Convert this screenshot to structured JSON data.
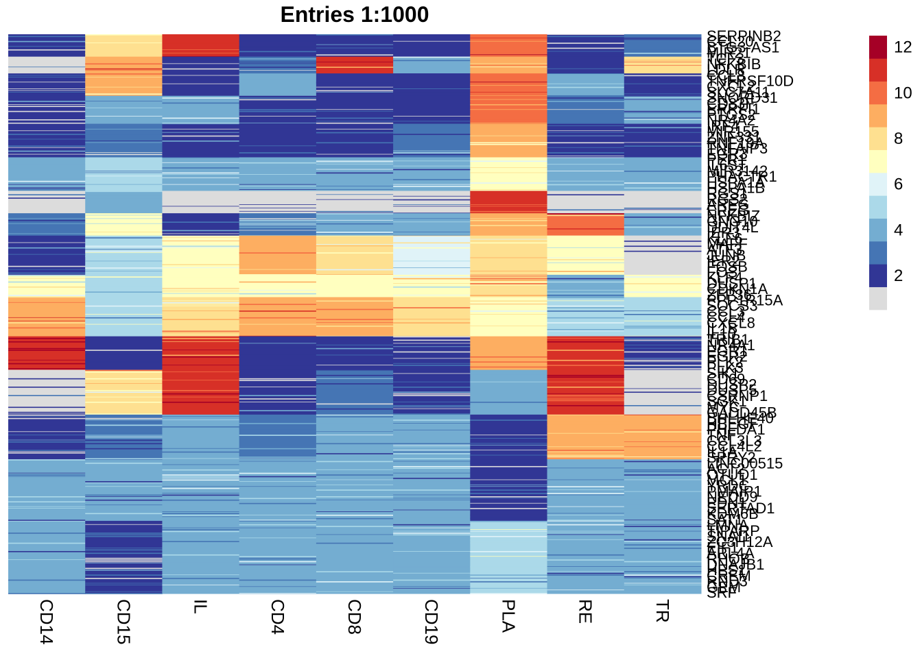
{
  "chart_data": {
    "type": "heatmap",
    "title": "Entries 1:1000",
    "columns": [
      "CD14",
      "CD15",
      "IL",
      "CD4",
      "CD8",
      "CD19",
      "PLA",
      "RE",
      "TR"
    ],
    "row_count": 1000,
    "color_scale": {
      "breaks": [
        1,
        2,
        3,
        4,
        5,
        6,
        7,
        8,
        9,
        10,
        11,
        12,
        13
      ],
      "colors": [
        "#dcdcdc",
        "#313695",
        "#4575b4",
        "#74add1",
        "#abd9e9",
        "#e0f3f8",
        "#ffffbf",
        "#fee090",
        "#fdae61",
        "#f46d43",
        "#d73027",
        "#a50026"
      ],
      "tick_labels": [
        "2",
        "4",
        "6",
        "8",
        "10",
        "12"
      ],
      "tick_values": [
        2,
        4,
        6,
        8,
        10,
        12
      ]
    },
    "blocks": [
      {
        "rows": [
          0,
          40
        ],
        "values": [
          2,
          8,
          11,
          2,
          2,
          2,
          10,
          2,
          3
        ]
      },
      {
        "rows": [
          40,
          70
        ],
        "values": [
          1,
          9,
          2,
          3,
          11,
          4,
          9,
          2,
          8
        ]
      },
      {
        "rows": [
          70,
          110
        ],
        "values": [
          2,
          9,
          2,
          4,
          2,
          2,
          10,
          4,
          2
        ]
      },
      {
        "rows": [
          110,
          160
        ],
        "values": [
          2,
          4,
          4,
          2,
          2,
          2,
          10,
          3,
          4
        ]
      },
      {
        "rows": [
          160,
          220
        ],
        "values": [
          2,
          3,
          2,
          2,
          2,
          3,
          9,
          2,
          2
        ]
      },
      {
        "rows": [
          220,
          280
        ],
        "values": [
          4,
          5,
          4,
          4,
          4,
          4,
          7,
          4,
          4
        ]
      },
      {
        "rows": [
          280,
          320
        ],
        "values": [
          1,
          4,
          1,
          1,
          1,
          1,
          11,
          1,
          1
        ]
      },
      {
        "rows": [
          320,
          360
        ],
        "values": [
          3,
          7,
          2,
          3,
          4,
          4,
          9,
          10,
          4
        ]
      },
      {
        "rows": [
          360,
          430
        ],
        "values": [
          2,
          5,
          7,
          9,
          8,
          6,
          8,
          7,
          1
        ]
      },
      {
        "rows": [
          430,
          470
        ],
        "values": [
          7,
          5,
          7,
          7,
          7,
          7,
          8,
          4,
          7
        ]
      },
      {
        "rows": [
          470,
          540
        ],
        "values": [
          9,
          5,
          8,
          9,
          9,
          8,
          7,
          5,
          5
        ]
      },
      {
        "rows": [
          540,
          600
        ],
        "values": [
          11,
          2,
          11,
          2,
          2,
          2,
          9,
          11,
          2
        ]
      },
      {
        "rows": [
          600,
          680
        ],
        "values": [
          1,
          8,
          11,
          2,
          3,
          2,
          4,
          11,
          1
        ]
      },
      {
        "rows": [
          680,
          760
        ],
        "values": [
          2,
          3,
          4,
          3,
          4,
          4,
          2,
          9,
          9
        ]
      },
      {
        "rows": [
          760,
          870
        ],
        "values": [
          4,
          4,
          4,
          4,
          4,
          4,
          2,
          4,
          4
        ]
      },
      {
        "rows": [
          870,
          1000
        ],
        "values": [
          4,
          2,
          4,
          4,
          4,
          4,
          5,
          4,
          4
        ]
      }
    ],
    "row_labels": [
      "SERPINB2",
      "CCL20",
      "BTG3-AS1",
      "MIR21",
      "TCF3",
      "NFKBIB",
      "LDLR",
      "CCL8",
      "TNFRSF10D",
      "CXCL2",
      "SLC7A11",
      "SNORD31",
      "CD83F",
      "ERRFI1",
      "PTGS2",
      "NR4A2",
      "IRF4",
      "MIR155",
      "ZNF331",
      "RNF19A",
      "TNFAIP3",
      "EGR3",
      "PER1",
      "IL6ST",
      "MIR3142",
      "PHACTR1",
      "HSPA1A",
      "HSPA1B",
      "RGS1",
      "RGS2",
      "AREG",
      "EREG",
      "NFKBIZ",
      "GNG10",
      "DDIT4L",
      "IER3",
      "KLF6",
      "MAFF",
      "ATF3",
      "JUNB",
      "IER2",
      "FOSB",
      "FOS",
      "KLF4",
      "DUSP1",
      "CDKN1A",
      "ZFP36",
      "PPP1R15A",
      "SOCS3",
      "CCL3",
      "CCL4",
      "CXCL8",
      "IL1B",
      "IL10",
      "TRIB1",
      "NR4A1",
      "EGR1",
      "EGR2",
      "PLK2",
      "PLK3",
      "SIK1",
      "CD69",
      "DUSP2",
      "DUSP5",
      "CSRNP1",
      "SGK1",
      "MYC",
      "GADD45B",
      "BHLHE40",
      "HBEGF",
      "PHLDA1",
      "TNF",
      "CCL3L3",
      "CCL4L2",
      "IL1A",
      "SPRY2",
      "LINC00515",
      "ACT2",
      "OTUD1",
      "MCL1",
      "YRDC",
      "PMAIP1",
      "NEDD9",
      "EDN1",
      "SERTAD1",
      "KDM6B",
      "SAT1",
      "LMNA",
      "TIPARP",
      "SNAI1",
      "ZC3H12A",
      "EIF1",
      "ARL4A",
      "RHOB",
      "DNAJB1",
      "HES1",
      "CREM",
      "RND3",
      "GEM",
      "SRF"
    ]
  }
}
